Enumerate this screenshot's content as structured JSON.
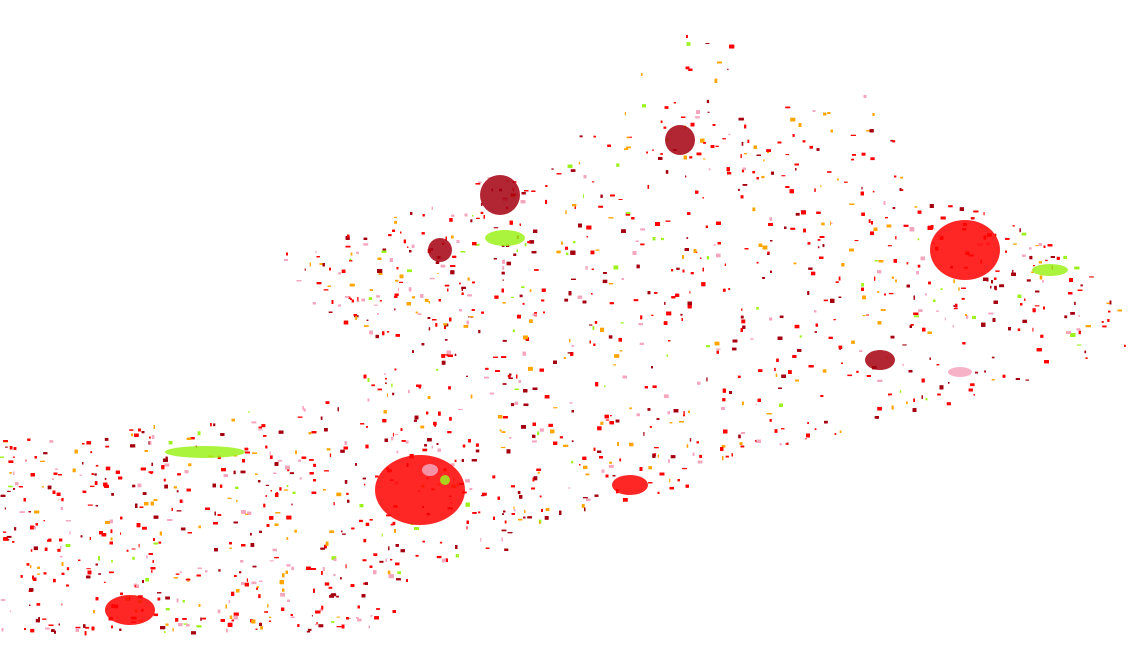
{
  "map": {
    "type": "land-use classification raster",
    "background": "#ffffff",
    "palette": {
      "dark_red": "#a50010",
      "red": "#ff0000",
      "pink": "#f4a6bd",
      "orange": "#ffa500",
      "lime": "#9cf21c"
    }
  }
}
